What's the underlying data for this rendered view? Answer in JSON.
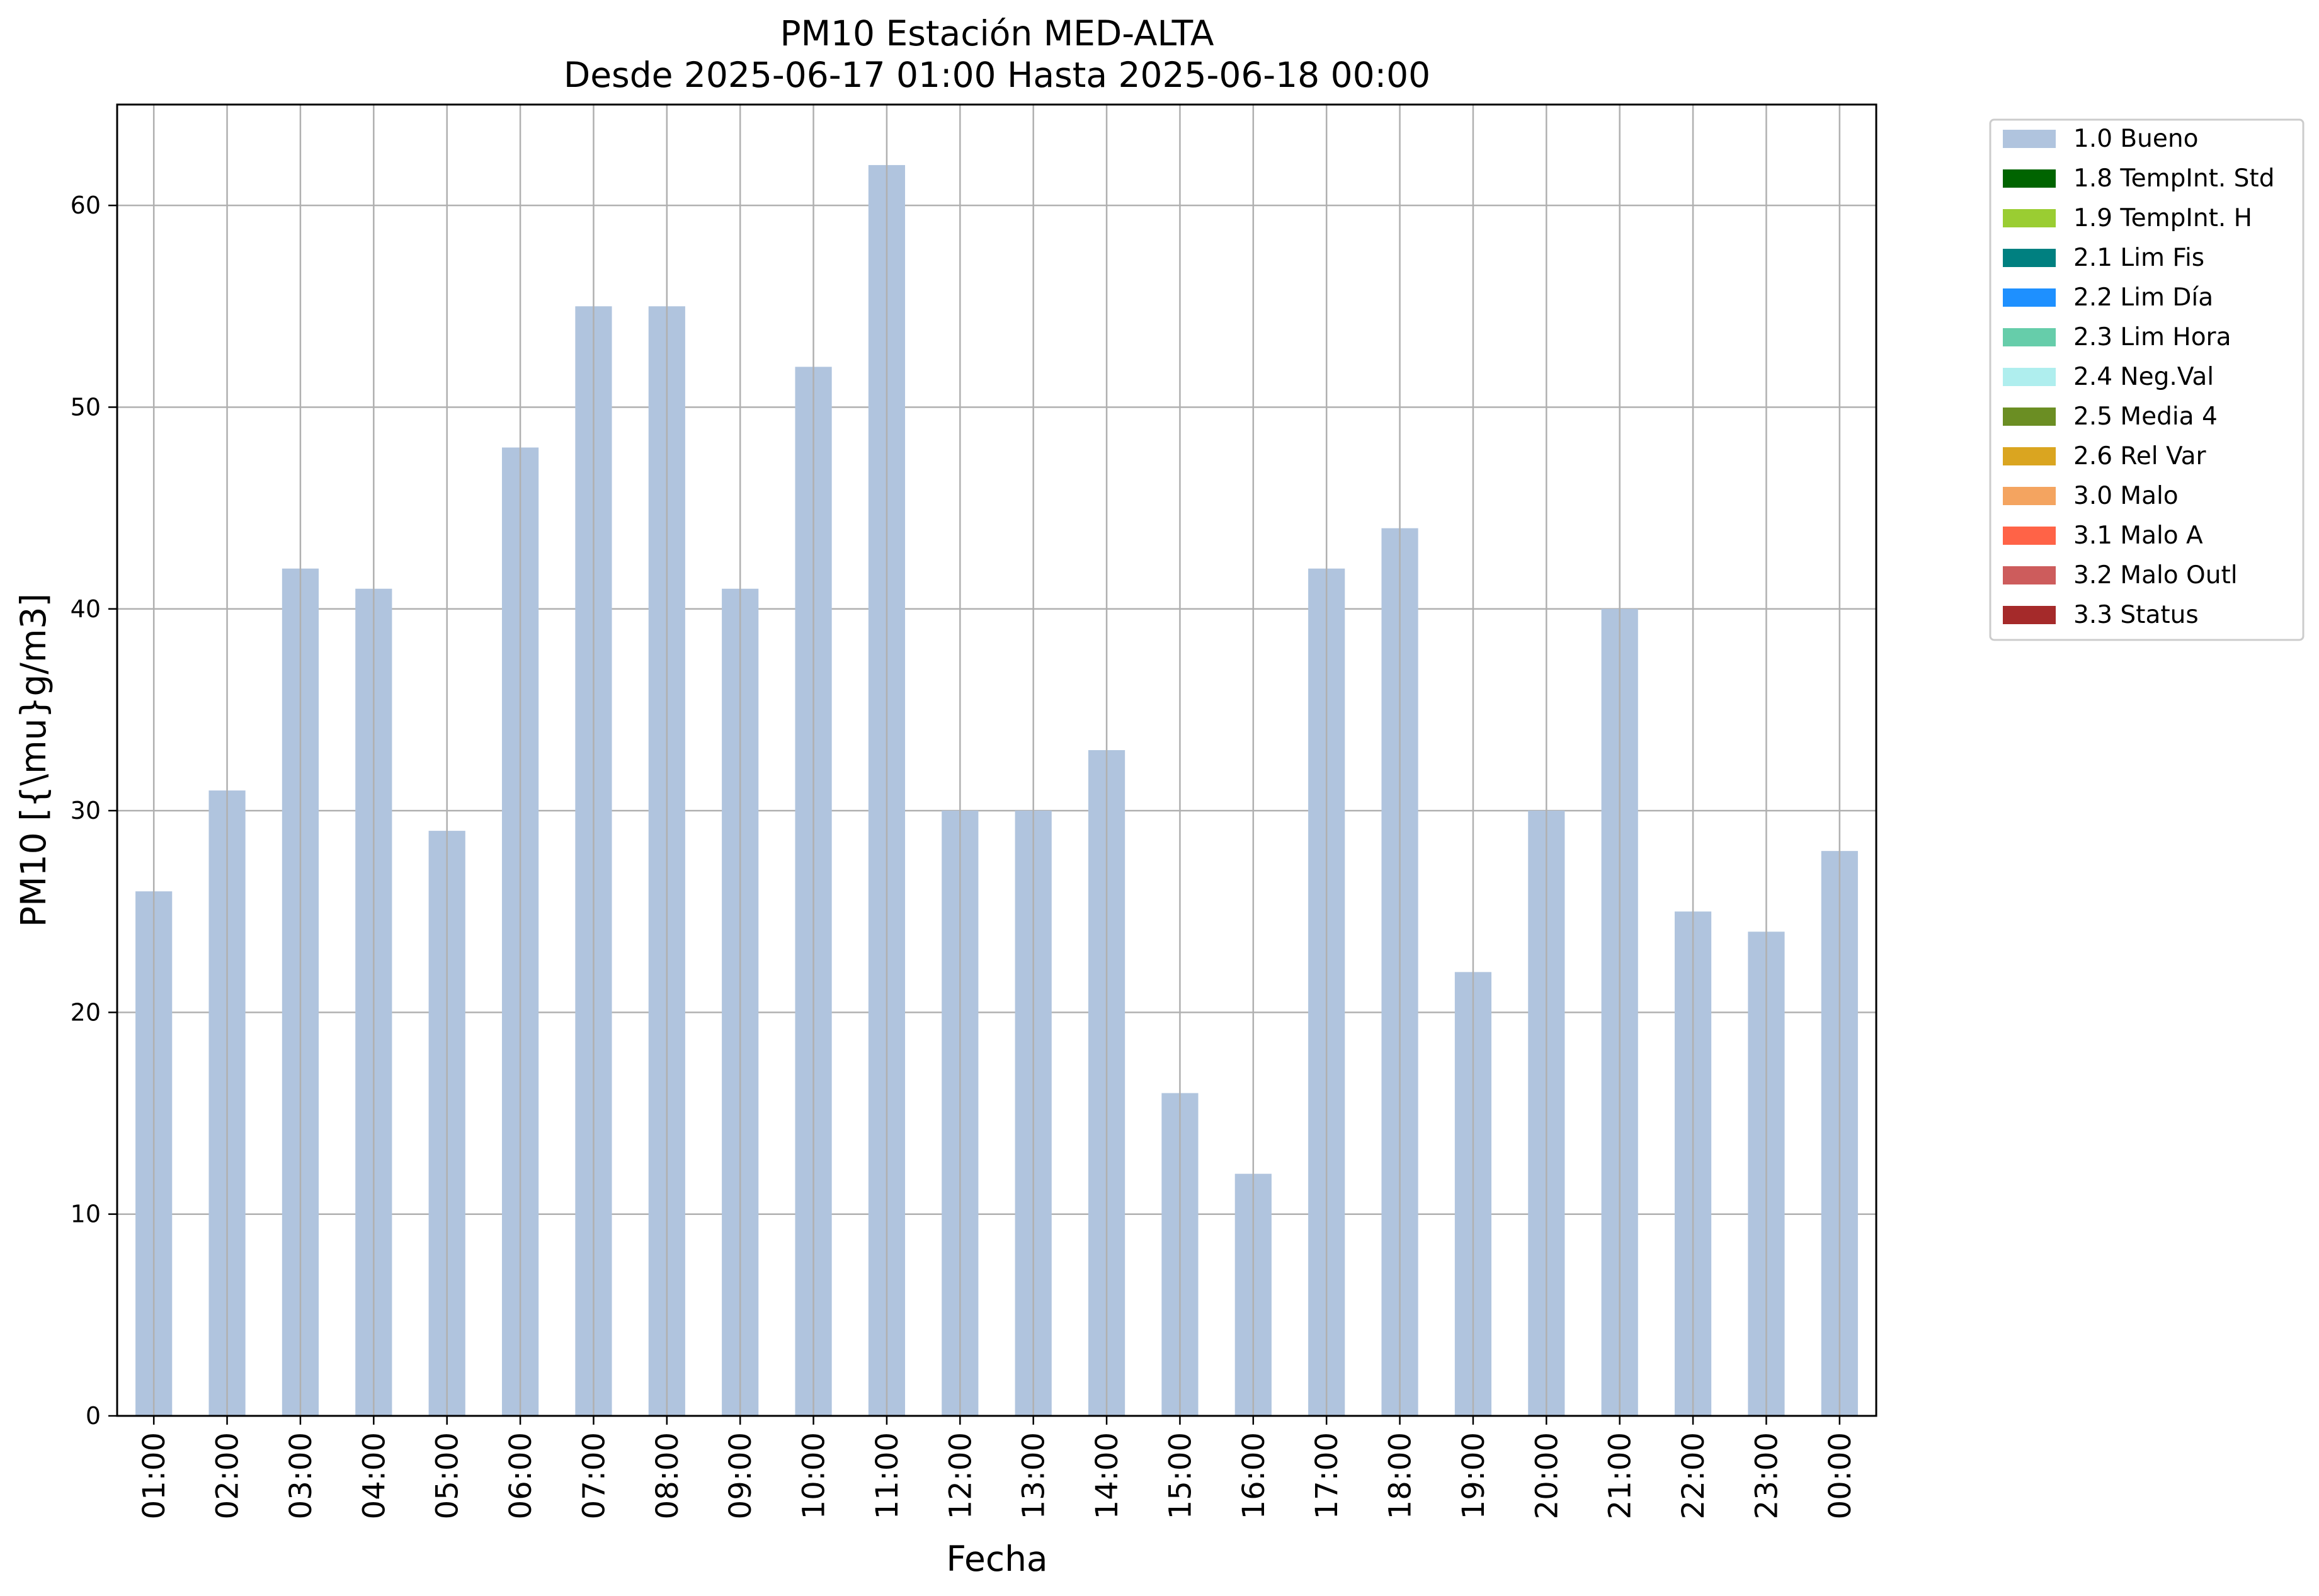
{
  "chart_data": {
    "type": "bar",
    "title_line1": "PM10 Estación MED-ALTA",
    "title_line2": "Desde 2025-06-17 01:00 Hasta 2025-06-18 00:00",
    "xlabel": "Fecha",
    "ylabel": "PM10 [{\\mu}g/m3]",
    "categories": [
      "01:00",
      "02:00",
      "03:00",
      "04:00",
      "05:00",
      "06:00",
      "07:00",
      "08:00",
      "09:00",
      "10:00",
      "11:00",
      "12:00",
      "13:00",
      "14:00",
      "15:00",
      "16:00",
      "17:00",
      "18:00",
      "19:00",
      "20:00",
      "21:00",
      "22:00",
      "23:00",
      "00:00"
    ],
    "series": [
      {
        "name": "1.0 Bueno",
        "color": "#b0c4de",
        "values": [
          26,
          31,
          42,
          41,
          29,
          48,
          55,
          55,
          41,
          52,
          62,
          30,
          30,
          33,
          16,
          12,
          42,
          44,
          22,
          30,
          40,
          25,
          24,
          28
        ]
      }
    ],
    "ylim": [
      0,
      65
    ],
    "yticks": [
      0,
      10,
      20,
      30,
      40,
      50,
      60
    ],
    "grid": true,
    "legend_position": "outside-top-right",
    "legend": [
      {
        "label": "1.0 Bueno",
        "color": "#b0c4de"
      },
      {
        "label": "1.8 TempInt. Std",
        "color": "#006400"
      },
      {
        "label": "1.9 TempInt. H",
        "color": "#9acd32"
      },
      {
        "label": "2.1 Lim Fis",
        "color": "#008080"
      },
      {
        "label": "2.2 Lim Día",
        "color": "#1e90ff"
      },
      {
        "label": "2.3 Lim Hora",
        "color": "#66cdaa"
      },
      {
        "label": "2.4 Neg.Val",
        "color": "#afeeee"
      },
      {
        "label": "2.5 Media 4",
        "color": "#6b8e23"
      },
      {
        "label": "2.6 Rel Var",
        "color": "#daa520"
      },
      {
        "label": "3.0 Malo",
        "color": "#f4a460"
      },
      {
        "label": "3.1 Malo A",
        "color": "#ff6347"
      },
      {
        "label": "3.2 Malo Outl",
        "color": "#cd5c5c"
      },
      {
        "label": "3.3 Status",
        "color": "#a52a2a"
      }
    ]
  }
}
